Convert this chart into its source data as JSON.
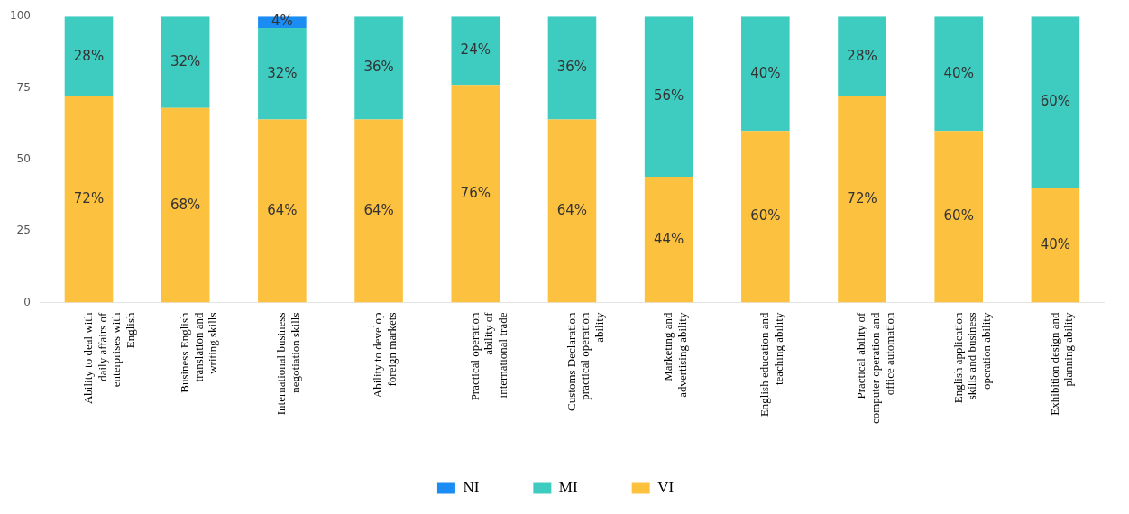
{
  "chart_data": {
    "type": "bar",
    "stacked": true,
    "categories": [
      "Ability to deal with daily affairs of enterprises with English",
      "Business English translation and writing skills",
      "International business negotiation skills",
      "Ability to develop foreign markets",
      "Practical operation ability of international trade",
      "Customs Declaration practical operation ability",
      "Marketing and advertising ability",
      "English education and teaching ability",
      "Practical ability of computer operation and office automation",
      "English application skills and business operation ability",
      "Exhibition design and planning ability"
    ],
    "series": [
      {
        "name": "VI",
        "color": "#fcc13e",
        "values": [
          72,
          68,
          64,
          64,
          76,
          64,
          44,
          60,
          72,
          60,
          40
        ],
        "value_labels": [
          "72%",
          "68%",
          "64%",
          "64%",
          "76%",
          "64%",
          "44%",
          "60%",
          "72%",
          "60%",
          "40%"
        ]
      },
      {
        "name": "MI",
        "color": "#3ecbc0",
        "values": [
          28,
          32,
          32,
          36,
          24,
          36,
          56,
          40,
          28,
          40,
          60
        ],
        "value_labels": [
          "28%",
          "32%",
          "32%",
          "36%",
          "24%",
          "36%",
          "56%",
          "40%",
          "28%",
          "40%",
          "60%"
        ]
      },
      {
        "name": "NI",
        "color": "#1a8cf2",
        "values": [
          0,
          0,
          4,
          0,
          0,
          0,
          0,
          0,
          0,
          0,
          0
        ],
        "value_labels": [
          null,
          null,
          "4%",
          null,
          null,
          null,
          null,
          null,
          null,
          null,
          null
        ]
      }
    ],
    "ylim": [
      0,
      100
    ],
    "yticks": [
      0,
      25,
      50,
      75,
      100
    ],
    "grid": false,
    "legend": "bottom"
  }
}
